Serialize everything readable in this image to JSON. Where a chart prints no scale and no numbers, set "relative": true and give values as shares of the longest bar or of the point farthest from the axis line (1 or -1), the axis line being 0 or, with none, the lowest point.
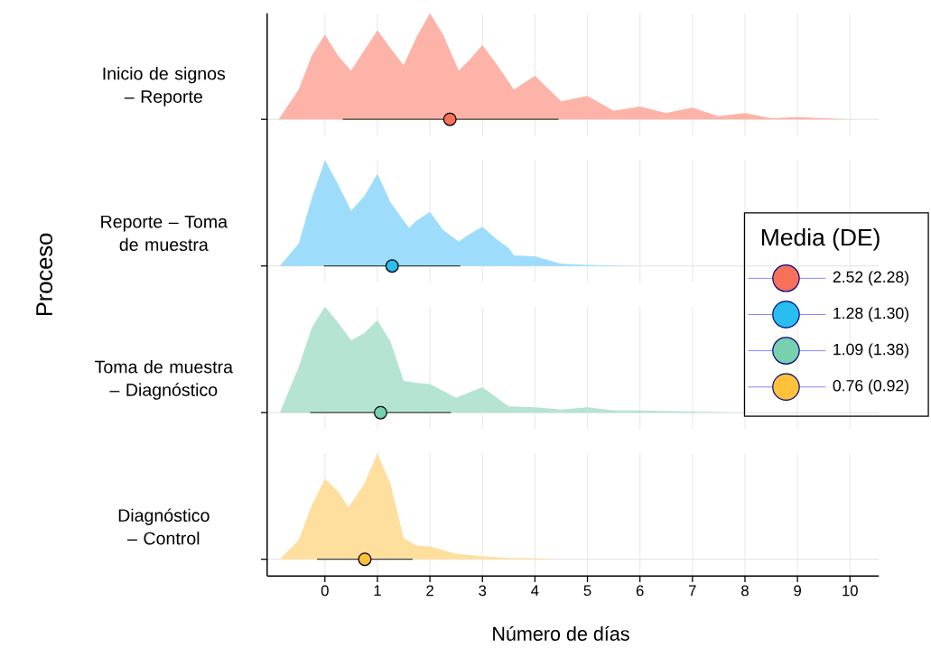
{
  "chart_data": [
    {
      "type": "area",
      "title": "Inicio de signos – Reporte",
      "relative": true,
      "xlim": [
        -1.1,
        10.55
      ],
      "xticks": [
        0,
        1,
        2,
        3,
        4,
        5,
        6,
        7,
        8,
        9,
        10
      ],
      "grid": "x",
      "tick_labels": false,
      "legend": "right",
      "series": [
        {
          "color": "#fdb3a7",
          "x": [
            -0.88,
            -0.5,
            -0.25,
            0,
            0.25,
            0.5,
            0.75,
            1,
            1.25,
            1.5,
            1.75,
            2,
            2.25,
            2.55,
            2.75,
            3,
            3.3,
            3.6,
            4,
            4.5,
            5,
            5.5,
            6,
            6.5,
            7,
            7.5,
            8,
            8.5,
            9,
            9.5,
            10
          ],
          "values": [
            0,
            0.28,
            0.6,
            0.8,
            0.6,
            0.46,
            0.65,
            0.84,
            0.67,
            0.51,
            0.78,
            1.0,
            0.8,
            0.46,
            0.56,
            0.7,
            0.5,
            0.28,
            0.41,
            0.17,
            0.22,
            0.08,
            0.12,
            0.06,
            0.11,
            0.03,
            0.06,
            0.01,
            0.02,
            0.01,
            0
          ]
        },
        {
          "type": "scatter",
          "name": "2.52 (2.28)",
          "color": "#f7705a",
          "marker": "circle",
          "x": [
            2.38
          ],
          "values": [
            0
          ],
          "xerrors": [
            [
              0.34,
              4.45
            ]
          ]
        }
      ]
    },
    {
      "type": "area",
      "title": "Reporte – Toma de muestra",
      "ylabel": "Proceso",
      "legend_title": "Media (DE)",
      "relative": true,
      "xlim": [
        -1.1,
        10.55
      ],
      "xticks": [
        0,
        1,
        2,
        3,
        4,
        5,
        6,
        7,
        8,
        9,
        10
      ],
      "grid": "x",
      "tick_labels": false,
      "legend": "right",
      "series": [
        {
          "color": "#9dddfb",
          "x": [
            -0.86,
            -0.5,
            -0.25,
            0,
            0.25,
            0.5,
            0.75,
            1,
            1.25,
            1.6,
            1.75,
            2,
            2.25,
            2.55,
            2.75,
            3,
            3.25,
            3.5,
            3.6,
            4,
            4.5,
            5,
            6,
            10
          ],
          "values": [
            0,
            0.21,
            0.64,
            1.0,
            0.77,
            0.52,
            0.66,
            0.87,
            0.6,
            0.36,
            0.43,
            0.51,
            0.34,
            0.23,
            0.3,
            0.37,
            0.26,
            0.17,
            0.1,
            0.09,
            0.02,
            0.01,
            0,
            0
          ]
        },
        {
          "type": "scatter",
          "name": "1.28 (1.30)",
          "color": "#29bdf0",
          "marker": "circle",
          "x": [
            1.28
          ],
          "values": [
            0
          ],
          "xerrors": [
            [
              -0.02,
              2.58
            ]
          ]
        }
      ]
    },
    {
      "type": "area",
      "title": "Toma de muestra – Diagnóstico",
      "relative": true,
      "xlim": [
        -1.1,
        10.55
      ],
      "xticks": [
        0,
        1,
        2,
        3,
        4,
        5,
        6,
        7,
        8,
        9,
        10
      ],
      "grid": "x",
      "tick_labels": false,
      "legend": "right",
      "series": [
        {
          "color": "#b5e4d3",
          "x": [
            -0.86,
            -0.5,
            -0.25,
            0,
            0.25,
            0.5,
            0.75,
            1,
            1.25,
            1.5,
            1.75,
            2,
            2.5,
            3,
            3.5,
            4,
            4.5,
            5,
            5.5,
            6,
            7,
            8
          ],
          "values": [
            0,
            0.43,
            0.8,
            1.0,
            0.85,
            0.68,
            0.75,
            0.87,
            0.67,
            0.3,
            0.28,
            0.27,
            0.14,
            0.24,
            0.06,
            0.05,
            0.03,
            0.05,
            0.02,
            0.02,
            0.01,
            0
          ]
        },
        {
          "type": "scatter",
          "name": "1.09 (1.38)",
          "color": "#78d0ae",
          "marker": "circle",
          "x": [
            1.06
          ],
          "values": [
            0
          ],
          "xerrors": [
            [
              -0.28,
              2.4
            ]
          ]
        }
      ]
    },
    {
      "type": "area",
      "title": "Diagnóstico – Control",
      "xlabel": "Número de días",
      "relative": true,
      "xlim": [
        -1.1,
        10.55
      ],
      "xticks": [
        0,
        1,
        2,
        3,
        4,
        5,
        6,
        7,
        8,
        9,
        10
      ],
      "grid": "x",
      "tick_labels": "x",
      "legend": "right",
      "series": [
        {
          "color": "#ffdf9e",
          "x": [
            -0.86,
            -0.5,
            -0.25,
            0,
            0.25,
            0.45,
            0.75,
            1,
            1.25,
            1.5,
            1.75,
            2,
            2.5,
            3,
            3.5,
            4,
            4.5,
            10
          ],
          "values": [
            0,
            0.18,
            0.51,
            0.76,
            0.64,
            0.49,
            0.71,
            1.0,
            0.71,
            0.2,
            0.13,
            0.12,
            0.05,
            0.03,
            0.01,
            0.01,
            0,
            0
          ]
        },
        {
          "type": "scatter",
          "name": "0.76 (0.92)",
          "color": "#fdc13a",
          "marker": "circle",
          "x": [
            0.76
          ],
          "values": [
            0
          ],
          "xerrors": [
            [
              -0.15,
              1.67
            ]
          ]
        }
      ]
    }
  ]
}
